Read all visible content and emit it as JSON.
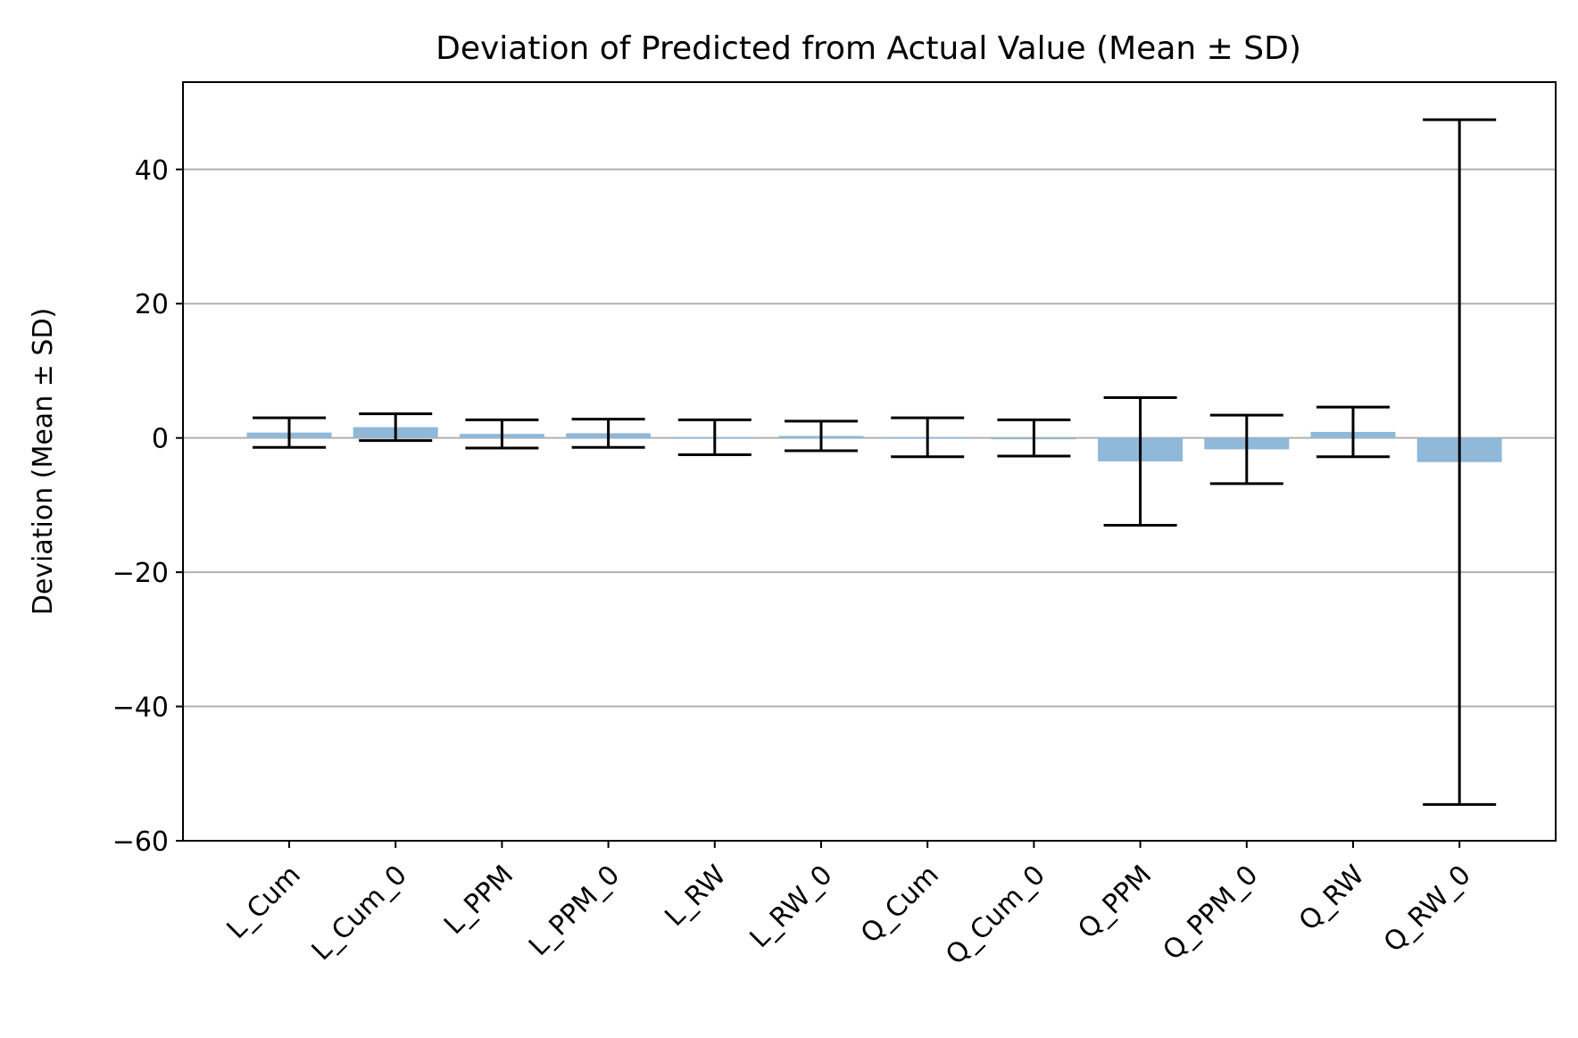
{
  "chart_data": {
    "type": "bar",
    "title": "Deviation of Predicted from Actual Value (Mean ± SD)",
    "xlabel": "",
    "ylabel": "Deviation (Mean ± SD)",
    "ylim": [
      -60,
      53
    ],
    "yticks": [
      -60,
      -40,
      -20,
      0,
      20,
      40
    ],
    "ytick_labels": [
      "−60",
      "−40",
      "−20",
      "0",
      "20",
      "40"
    ],
    "grid": "y",
    "bar_color": "#8fb8d9",
    "error_color": "#000000",
    "categories": [
      "L_Cum",
      "L_Cum_0",
      "L_PPM",
      "L_PPM_0",
      "L_RW",
      "L_RW_0",
      "Q_Cum",
      "Q_Cum_0",
      "Q_PPM",
      "Q_PPM_0",
      "Q_RW",
      "Q_RW_0"
    ],
    "values": [
      0.8,
      1.6,
      0.6,
      0.7,
      0.1,
      0.3,
      0.1,
      0.0,
      -3.5,
      -1.7,
      0.9,
      -3.6
    ],
    "sd": [
      2.2,
      2.0,
      2.1,
      2.1,
      2.6,
      2.2,
      2.9,
      2.7,
      9.5,
      5.1,
      3.7,
      51.0
    ]
  }
}
